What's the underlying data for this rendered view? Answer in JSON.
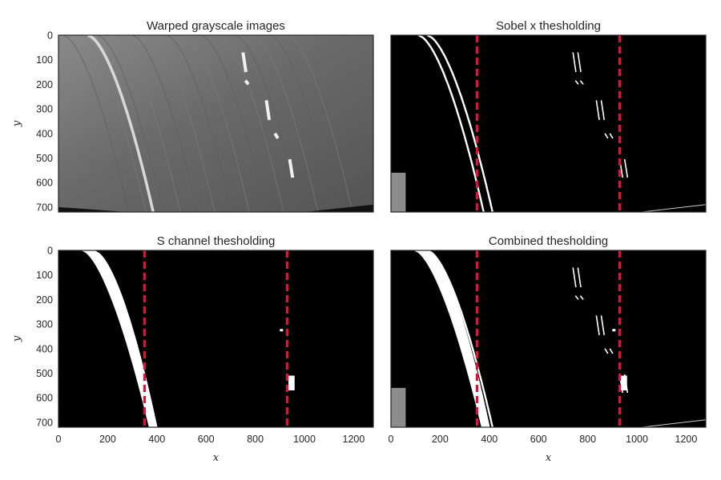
{
  "chart_data": [
    {
      "type": "image",
      "title": "Warped grayscale images",
      "ylabel": "y",
      "xlabel": "",
      "xlim": [
        0,
        1280
      ],
      "ylim": [
        0,
        720
      ],
      "yticks": [
        "0",
        "100",
        "200",
        "300",
        "400",
        "500",
        "600",
        "700"
      ],
      "xticks": [],
      "vlines": []
    },
    {
      "type": "image",
      "title": "Sobel x thesholding",
      "ylabel": "",
      "xlabel": "",
      "xlim": [
        0,
        1280
      ],
      "ylim": [
        0,
        720
      ],
      "yticks": [],
      "xticks": [],
      "vlines": [
        350,
        930
      ],
      "vline_color": "#dc143c"
    },
    {
      "type": "image",
      "title": "S channel thesholding",
      "ylabel": "y",
      "xlabel": "x",
      "xlim": [
        0,
        1280
      ],
      "ylim": [
        0,
        720
      ],
      "yticks": [
        "0",
        "100",
        "200",
        "300",
        "400",
        "500",
        "600",
        "700"
      ],
      "xticks": [
        "0",
        "200",
        "400",
        "600",
        "800",
        "1000",
        "1200"
      ],
      "vlines": [
        350,
        930
      ],
      "vline_color": "#dc143c"
    },
    {
      "type": "image",
      "title": "Combined thesholding",
      "ylabel": "",
      "xlabel": "x",
      "xlim": [
        0,
        1280
      ],
      "ylim": [
        0,
        720
      ],
      "yticks": [],
      "xticks": [
        "0",
        "200",
        "400",
        "600",
        "800",
        "1000",
        "1200"
      ],
      "vlines": [
        350,
        930
      ],
      "vline_color": "#dc143c"
    }
  ]
}
